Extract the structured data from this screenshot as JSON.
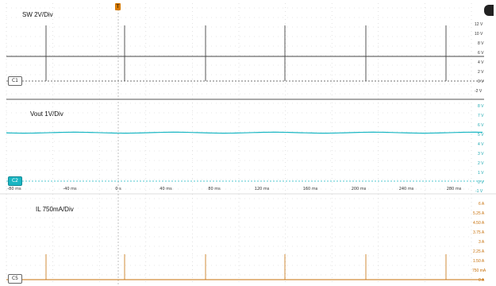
{
  "channels": {
    "sw": {
      "title": "SW 2V/Div",
      "tag": "C1"
    },
    "vout": {
      "title": "Vout 1V/Div",
      "tag": "C2"
    },
    "il": {
      "title": "IL 750mA/Div",
      "tag": "C5"
    }
  },
  "trigger_label": "T",
  "sw_scale": [
    "12 V",
    "10 V",
    "8 V",
    "6 V",
    "4 V",
    "2 V",
    "0 V",
    "-2 V"
  ],
  "vout_scale": [
    "8 V",
    "7 V",
    "6 V",
    "5 V",
    "4 V",
    "3 V",
    "2 V",
    "1 V",
    "0 V",
    "-1 V"
  ],
  "il_scale": [
    "6 A",
    "5.25 A",
    "4.50 A",
    "3.75 A",
    "3 A",
    "2.25 A",
    "1.50 A",
    "750 mA",
    "0 A"
  ],
  "time_axis": [
    "-80 ms",
    "-40 ms",
    "0 s",
    "40 ms",
    "80 ms",
    "120 ms",
    "160 ms",
    "200 ms",
    "240 ms",
    "280 ms"
  ],
  "colors": {
    "sw": "#444444",
    "vout": "#19b6c3",
    "il": "#c7700a",
    "grid": "#cfcfcf"
  }
}
